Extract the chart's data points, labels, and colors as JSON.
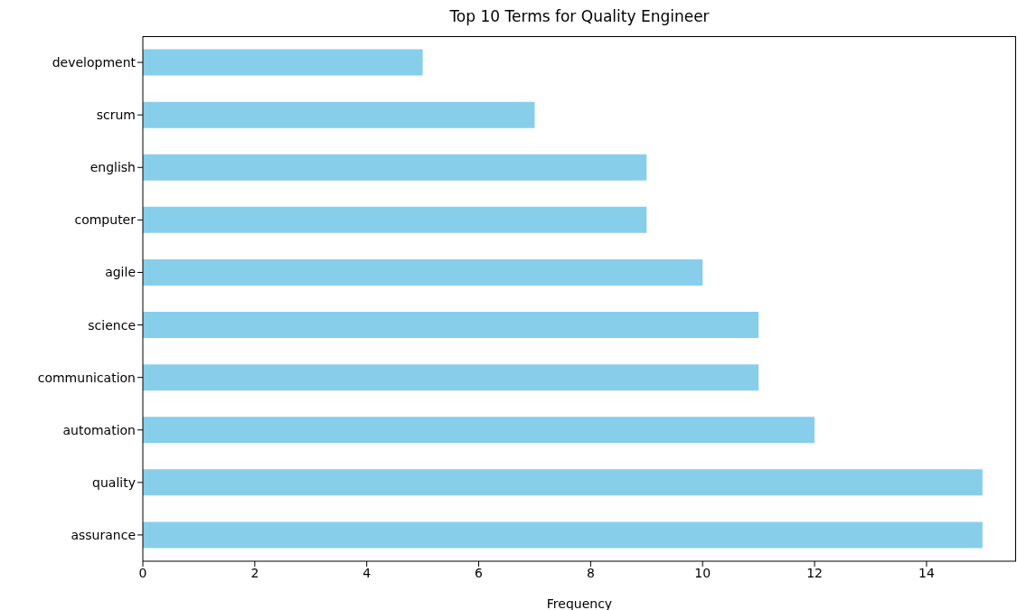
{
  "chart_data": {
    "type": "bar",
    "orientation": "horizontal",
    "title": "Top 10 Terms for Quality Engineer",
    "xlabel": "Frequency",
    "categories": [
      "development",
      "scrum",
      "english",
      "computer",
      "agile",
      "science",
      "communication",
      "automation",
      "quality",
      "assurance"
    ],
    "values": [
      5,
      7,
      9,
      9,
      10,
      11,
      11,
      12,
      15,
      15
    ],
    "color": "#87ceeb",
    "xlim": [
      0,
      15.6
    ],
    "xticks": [
      0,
      2,
      4,
      6,
      8,
      10,
      12,
      14
    ]
  }
}
